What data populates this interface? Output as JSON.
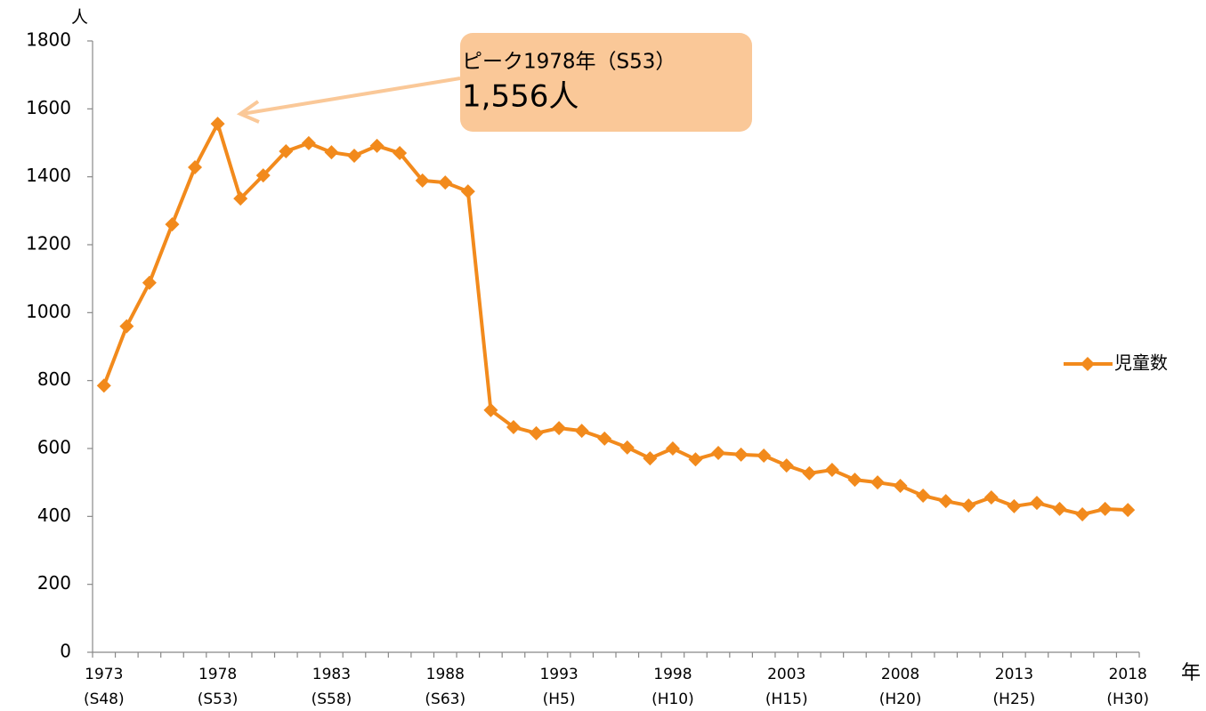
{
  "chart_data": {
    "type": "line",
    "y_unit": "人",
    "x_unit": "年",
    "categories": [
      "1973",
      null,
      null,
      null,
      null,
      "1978",
      null,
      null,
      null,
      null,
      "1983",
      null,
      null,
      null,
      null,
      "1988",
      null,
      null,
      null,
      null,
      "1993",
      null,
      null,
      null,
      null,
      "1998",
      null,
      null,
      null,
      null,
      "2003",
      null,
      null,
      null,
      null,
      "2008",
      null,
      null,
      null,
      null,
      "2013",
      null,
      null,
      null,
      null,
      "2018"
    ],
    "era_labels": [
      "(S48)",
      null,
      null,
      null,
      null,
      "(S53)",
      null,
      null,
      null,
      null,
      "(S58)",
      null,
      null,
      null,
      null,
      "(S63)",
      null,
      null,
      null,
      null,
      "(H5)",
      null,
      null,
      null,
      null,
      "(H10)",
      null,
      null,
      null,
      null,
      "(H15)",
      null,
      null,
      null,
      null,
      "(H20)",
      null,
      null,
      null,
      null,
      "(H25)",
      null,
      null,
      null,
      null,
      "(H30)"
    ],
    "series": [
      {
        "name": "児童数",
        "color": "#f28a1c",
        "values": [
          785,
          960,
          1088,
          1260,
          1428,
          1556,
          1336,
          1404,
          1475,
          1499,
          1472,
          1462,
          1491,
          1470,
          1389,
          1383,
          1357,
          713,
          663,
          645,
          660,
          652,
          629,
          603,
          571,
          600,
          568,
          587,
          582,
          579,
          550,
          527,
          537,
          508,
          500,
          490,
          461,
          445,
          432,
          456,
          430,
          440,
          422,
          406,
          422,
          419
        ]
      }
    ],
    "ylim": [
      0,
      1800
    ],
    "yticks": [
      0,
      200,
      400,
      600,
      800,
      1000,
      1200,
      1400,
      1600,
      1800
    ],
    "grid": false,
    "legend": "right",
    "annotation": {
      "title": "ピーク1978年（S53）",
      "value_label": "1,556人",
      "color": "#fac898"
    }
  }
}
